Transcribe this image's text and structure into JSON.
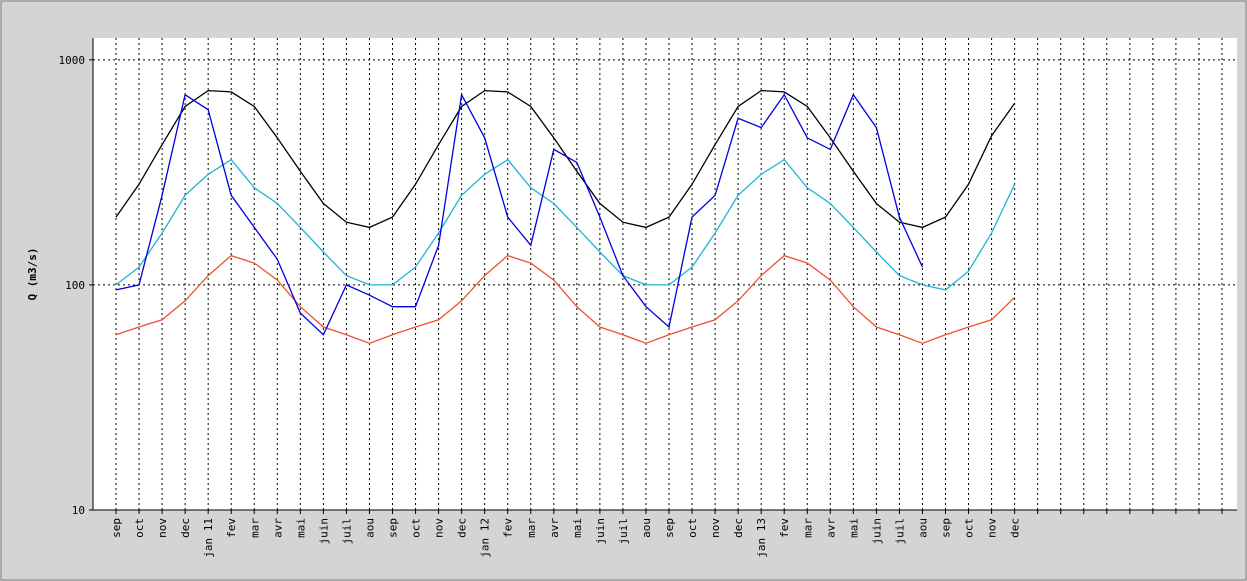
{
  "chart_data": {
    "type": "line",
    "ylabel": "Q (m3/s)",
    "log_scale": true,
    "grid": true,
    "ylim": [
      10,
      1250
    ],
    "yticks": [
      10,
      100,
      1000
    ],
    "categories": [
      "sep",
      "oct",
      "nov",
      "dec",
      "jan 11",
      "fev",
      "mar",
      "avr",
      "mai",
      "juin",
      "juil",
      "aou",
      "sep",
      "oct",
      "nov",
      "dec",
      "jan 12",
      "fev",
      "mar",
      "avr",
      "mai",
      "juin",
      "juil",
      "aou",
      "sep",
      "oct",
      "nov",
      "dec",
      "jan 13",
      "fev",
      "mar",
      "avr",
      "mai",
      "juin",
      "juil",
      "aou",
      "sep",
      "oct",
      "nov",
      "dec",
      null,
      null,
      null,
      null,
      null,
      null,
      null,
      null,
      null
    ],
    "series": [
      {
        "color": "#000000",
        "values": [
          200,
          280,
          420,
          620,
          730,
          720,
          620,
          450,
          320,
          230,
          190,
          180,
          200,
          280,
          420,
          620,
          730,
          720,
          620,
          450,
          320,
          230,
          190,
          180,
          200,
          280,
          420,
          620,
          730,
          720,
          620,
          450,
          320,
          230,
          190,
          180,
          200,
          280,
          460,
          640,
          null,
          null,
          null,
          null,
          null,
          null,
          null,
          null,
          null
        ]
      },
      {
        "color": "#20b4d4",
        "values": [
          100,
          120,
          170,
          250,
          310,
          360,
          270,
          230,
          180,
          140,
          110,
          100,
          100,
          120,
          170,
          250,
          310,
          360,
          270,
          230,
          180,
          140,
          110,
          100,
          100,
          120,
          170,
          250,
          310,
          360,
          270,
          230,
          180,
          140,
          110,
          100,
          95,
          115,
          170,
          280,
          null,
          null,
          null,
          null,
          null,
          null,
          null,
          null,
          null
        ]
      },
      {
        "color": "#f05030",
        "values": [
          60,
          65,
          70,
          85,
          110,
          135,
          125,
          105,
          80,
          65,
          60,
          55,
          60,
          65,
          70,
          85,
          110,
          135,
          125,
          105,
          80,
          65,
          60,
          55,
          60,
          65,
          70,
          85,
          110,
          135,
          125,
          105,
          80,
          65,
          60,
          55,
          60,
          65,
          70,
          88,
          null,
          null,
          null,
          null,
          null,
          null,
          null,
          null,
          null
        ]
      },
      {
        "color": "#0000e0",
        "values": [
          95,
          100,
          250,
          700,
          600,
          250,
          180,
          130,
          75,
          60,
          100,
          90,
          80,
          80,
          150,
          700,
          450,
          200,
          150,
          400,
          350,
          200,
          110,
          80,
          65,
          200,
          250,
          550,
          500,
          700,
          450,
          400,
          700,
          500,
          200,
          120,
          null,
          null,
          null,
          null,
          null,
          null,
          null,
          null,
          null,
          null,
          null,
          null,
          null
        ]
      }
    ]
  }
}
